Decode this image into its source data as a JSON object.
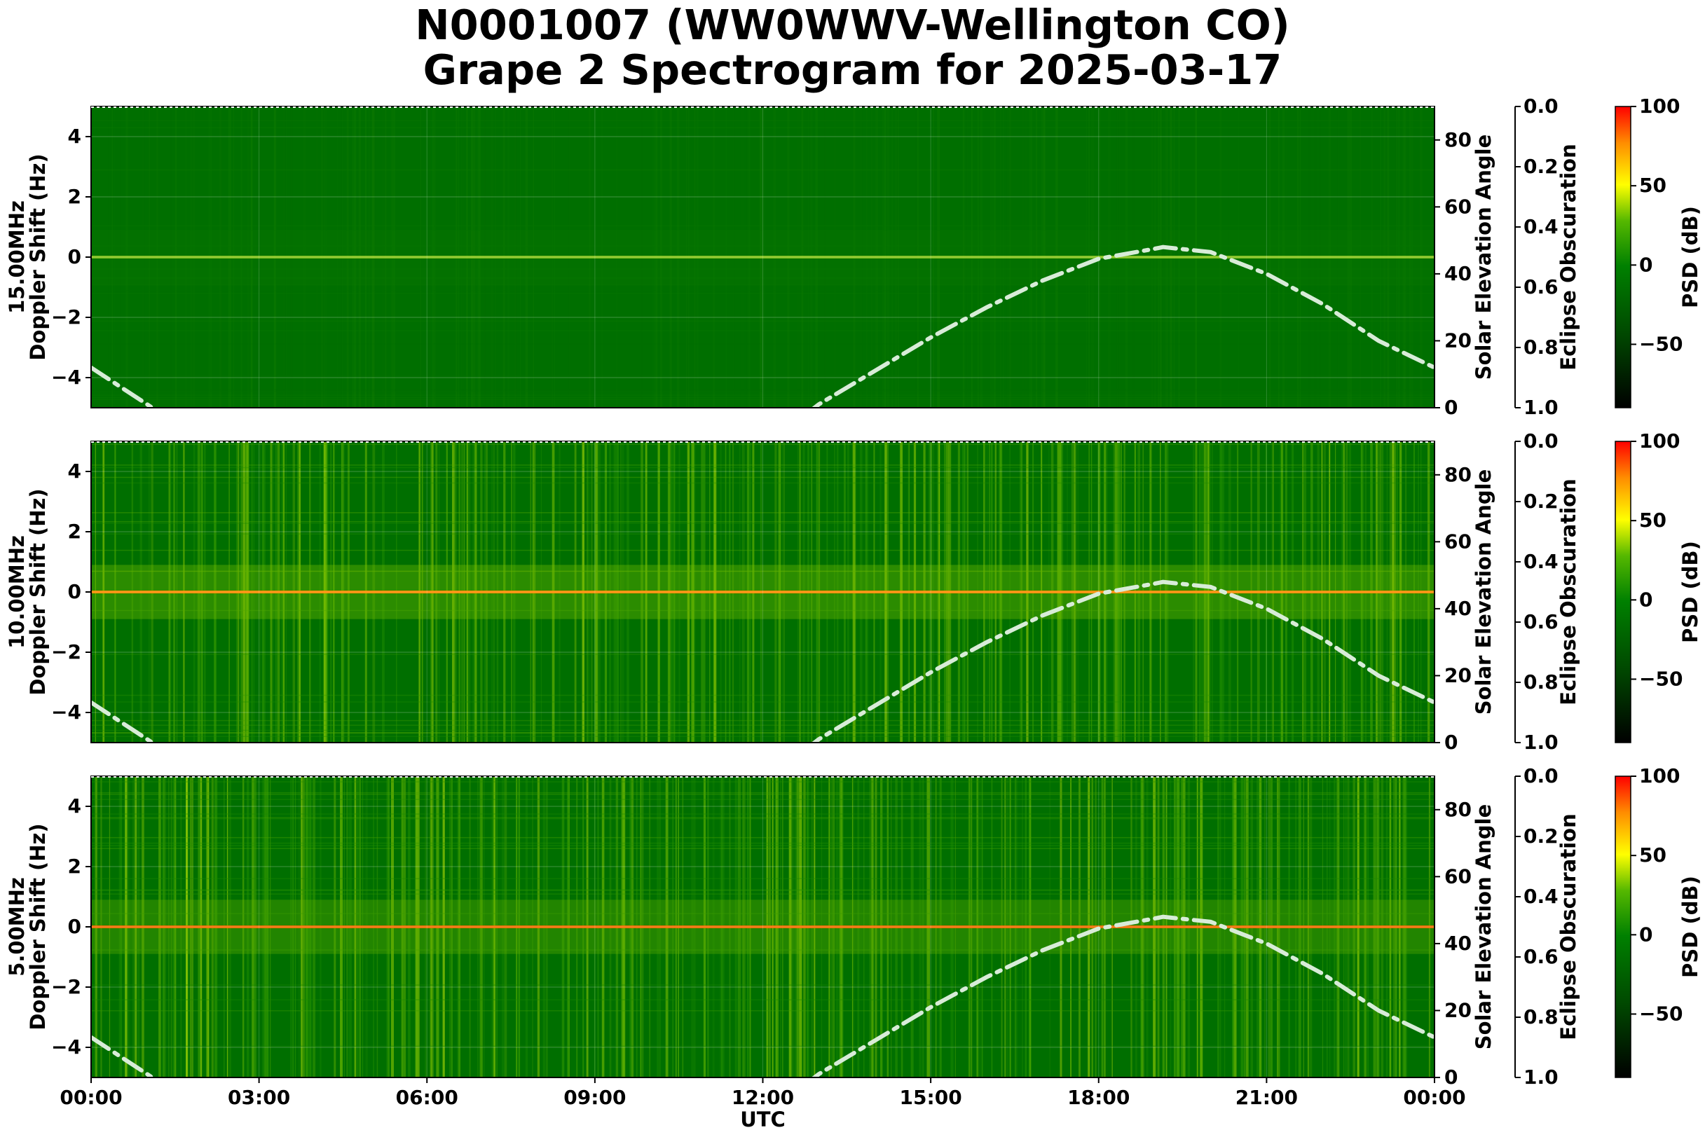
{
  "title_line1": "N0001007 (WW0WWV-Wellington CO)",
  "title_line2": "Grape 2 Spectrogram for 2025-03-17",
  "colors": {
    "background": "#006f00",
    "solar_curve": "#d8ecd8",
    "carrier_15": "#e6ff33",
    "carrier_10": "#ff8c00",
    "carrier_5": "#ff6a00"
  },
  "chart_data": {
    "type": "heatmap",
    "xlabel": "UTC",
    "x_ticks": [
      "00:00",
      "03:00",
      "06:00",
      "09:00",
      "12:00",
      "15:00",
      "18:00",
      "21:00",
      "00:00"
    ],
    "xlim_hours": [
      0,
      24
    ],
    "panels": [
      {
        "frequency_label": "15.00MHz",
        "ylabel": "Doppler Shift (Hz)",
        "ylim": [
          -5,
          5
        ],
        "y_ticks": [
          4,
          2,
          0,
          -2,
          -4
        ],
        "y2_label": "Solar Elevation Angle",
        "y2lim": [
          0,
          90
        ],
        "y2_ticks": [
          0,
          20,
          40,
          60,
          80
        ],
        "eclipse_label": "Eclipse Obscuration",
        "eclipse_ticks": [
          "0.0",
          "0.2",
          "0.4",
          "0.6",
          "0.8",
          "1.0"
        ],
        "psd_label": "PSD (dB)",
        "psd_range": [
          -90,
          100
        ],
        "psd_ticks": [
          100,
          50,
          0,
          -50
        ],
        "psd_tick_labels": [
          "100",
          "50",
          "0",
          "−50"
        ],
        "base_level": 0.0,
        "noise_level": 0.05,
        "carrier_intensity": 0.55
      },
      {
        "frequency_label": "10.00MHz",
        "ylabel": "Doppler Shift (Hz)",
        "ylim": [
          -5,
          5
        ],
        "y_ticks": [
          4,
          2,
          0,
          -2,
          -4
        ],
        "y2_label": "Solar Elevation Angle",
        "y2lim": [
          0,
          90
        ],
        "y2_ticks": [
          0,
          20,
          40,
          60,
          80
        ],
        "eclipse_label": "Eclipse Obscuration",
        "eclipse_ticks": [
          "0.0",
          "0.2",
          "0.4",
          "0.6",
          "0.8",
          "1.0"
        ],
        "psd_label": "PSD (dB)",
        "psd_range": [
          -90,
          100
        ],
        "psd_ticks": [
          100,
          50,
          0,
          -50
        ],
        "psd_tick_labels": [
          "100",
          "50",
          "0",
          "−50"
        ],
        "base_level": 0.35,
        "noise_level": 0.18,
        "carrier_intensity": 0.95
      },
      {
        "frequency_label": "5.00MHz",
        "ylabel": "Doppler Shift (Hz)",
        "ylim": [
          -5,
          5
        ],
        "y_ticks": [
          4,
          2,
          0,
          -2,
          -4
        ],
        "y2_label": "Solar Elevation Angle",
        "y2lim": [
          0,
          90
        ],
        "y2_ticks": [
          0,
          20,
          40,
          60,
          80
        ],
        "eclipse_label": "Eclipse Obscuration",
        "eclipse_ticks": [
          "0.0",
          "0.2",
          "0.4",
          "0.6",
          "0.8",
          "1.0"
        ],
        "psd_label": "PSD (dB)",
        "psd_range": [
          -90,
          100
        ],
        "psd_ticks": [
          100,
          50,
          0,
          -50
        ],
        "psd_tick_labels": [
          "100",
          "50",
          "0",
          "−50"
        ],
        "base_level": 0.3,
        "noise_level": 0.2,
        "carrier_intensity": 0.9
      }
    ],
    "solar_elevation_curve": {
      "hours": [
        0,
        1,
        2,
        12,
        13,
        14,
        15,
        16,
        17,
        18,
        19,
        19.15,
        20,
        21,
        22,
        23,
        24
      ],
      "degrees": [
        12,
        1,
        -10,
        -12,
        1,
        11,
        21,
        30,
        38,
        44.5,
        47.5,
        48,
        46.5,
        40,
        31,
        20,
        12
      ]
    }
  }
}
